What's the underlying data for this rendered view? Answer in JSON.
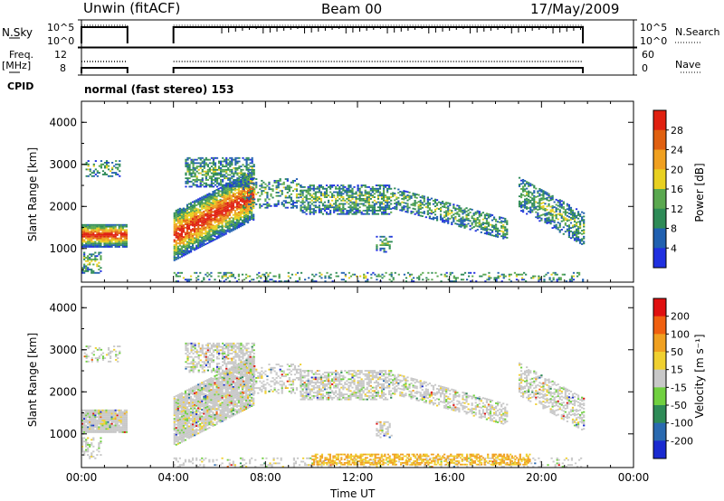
{
  "header": {
    "station": "Unwin (fitACF)",
    "beam": "Beam 00",
    "date": "17/May/2009"
  },
  "status_panels": {
    "nsky": {
      "label": "N.Sky",
      "tick_top": "10^5",
      "tick_bottom": "10^0"
    },
    "nsearch": {
      "label": "N.Search",
      "tick_top": "10^5",
      "tick_bottom": "10^0"
    },
    "freq": {
      "label_line1": "Freq.",
      "label_line2": "[MHz]",
      "tick_top": "12",
      "tick_bottom": "8"
    },
    "nave": {
      "label": "Nave",
      "tick_top": "60",
      "tick_bottom": "0"
    },
    "cpid": {
      "label": "CPID",
      "value": "normal (fast stereo) 153"
    }
  },
  "chart_data": [
    {
      "type": "heatmap",
      "name": "power",
      "ylabel": "Slant Range [km]",
      "xlabel": "",
      "y_ticks": [
        "1000",
        "2000",
        "3000",
        "4000"
      ],
      "ylim": [
        200,
        4500
      ],
      "xlim": [
        0,
        24
      ],
      "colorbar": {
        "label": "Power [dB]",
        "ticks": [
          "4",
          "8",
          "12",
          "16",
          "20",
          "24",
          "28"
        ],
        "colors": [
          "#2030e0",
          "#2060b0",
          "#2e8b57",
          "#5aa84f",
          "#e8d020",
          "#f0a020",
          "#e06010",
          "#e02010"
        ]
      }
    },
    {
      "type": "heatmap",
      "name": "velocity",
      "ylabel": "Slant Range [km]",
      "xlabel": "Time UT",
      "x_ticks": [
        "00:00",
        "04:00",
        "08:00",
        "12:00",
        "16:00",
        "20:00",
        "00:00"
      ],
      "y_ticks": [
        "1000",
        "2000",
        "3000",
        "4000"
      ],
      "ylim": [
        200,
        4500
      ],
      "xlim": [
        0,
        24
      ],
      "colorbar": {
        "label": "Velocity [m s⁻¹]",
        "ticks": [
          "200",
          "100",
          "50",
          "15",
          "-15",
          "-50",
          "-100",
          "-200"
        ],
        "colors": [
          "#1a2ad0",
          "#2a6ab0",
          "#2e8b57",
          "#70d040",
          "#c8c8c8",
          "#f0d030",
          "#f0a020",
          "#f06010",
          "#e01010"
        ]
      }
    }
  ]
}
